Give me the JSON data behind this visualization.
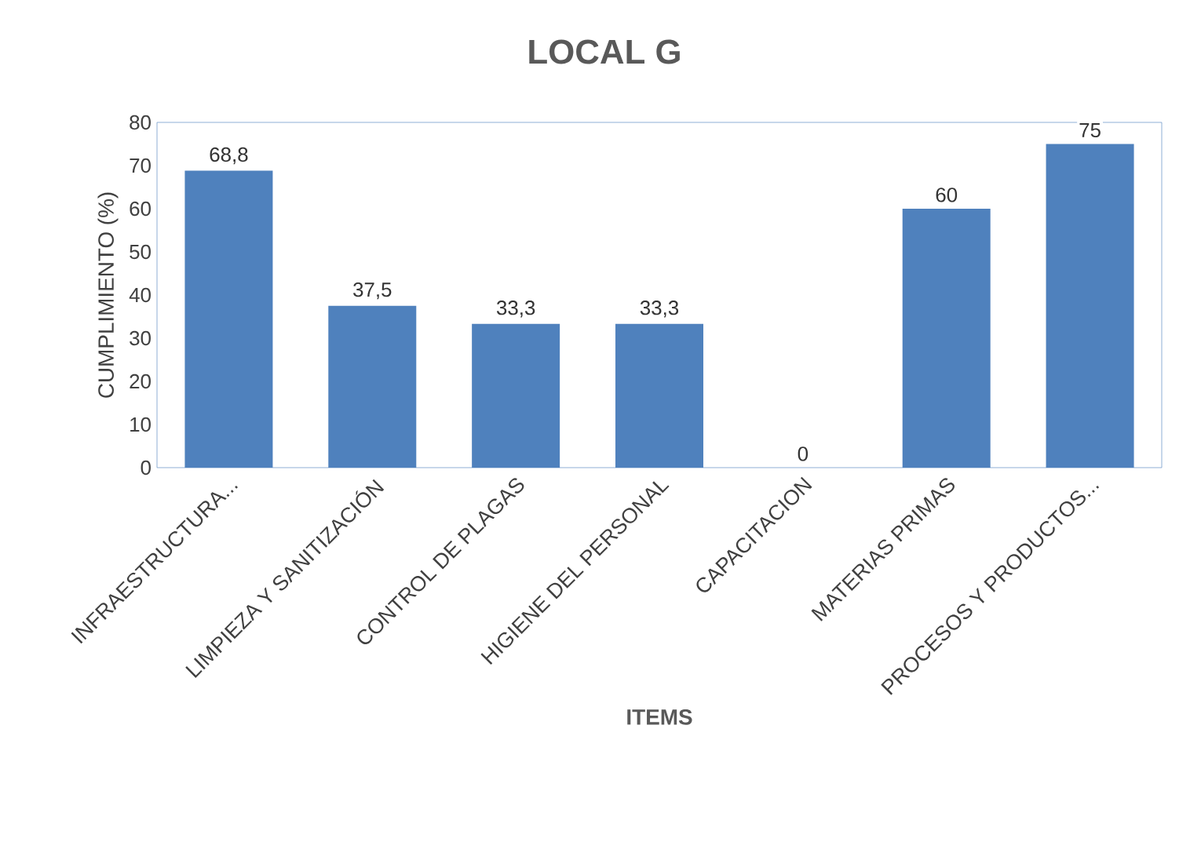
{
  "chart_data": {
    "type": "bar",
    "title": "LOCAL G",
    "xlabel": "ITEMS",
    "ylabel": "CUMPLIMIENTO (%)",
    "categories": [
      "INFRAESTRUCTURA...",
      "LIMPIEZA Y SANITIZACIÓN",
      "CONTROL DE PLAGAS",
      "HIGIENE DEL PERSONAL",
      "CAPACITACION",
      "MATERIAS PRIMAS",
      "PROCESOS Y PRODUCTOS..."
    ],
    "values": [
      68.8,
      37.5,
      33.3,
      33.3,
      0,
      60,
      75
    ],
    "value_labels": [
      "68,8",
      "37,5",
      "33,3",
      "33,3",
      "0",
      "60",
      "75"
    ],
    "color": "#4f81bd",
    "ylim": [
      0,
      80
    ],
    "yticks": [
      0,
      10,
      20,
      30,
      40,
      50,
      60,
      70,
      80
    ]
  }
}
